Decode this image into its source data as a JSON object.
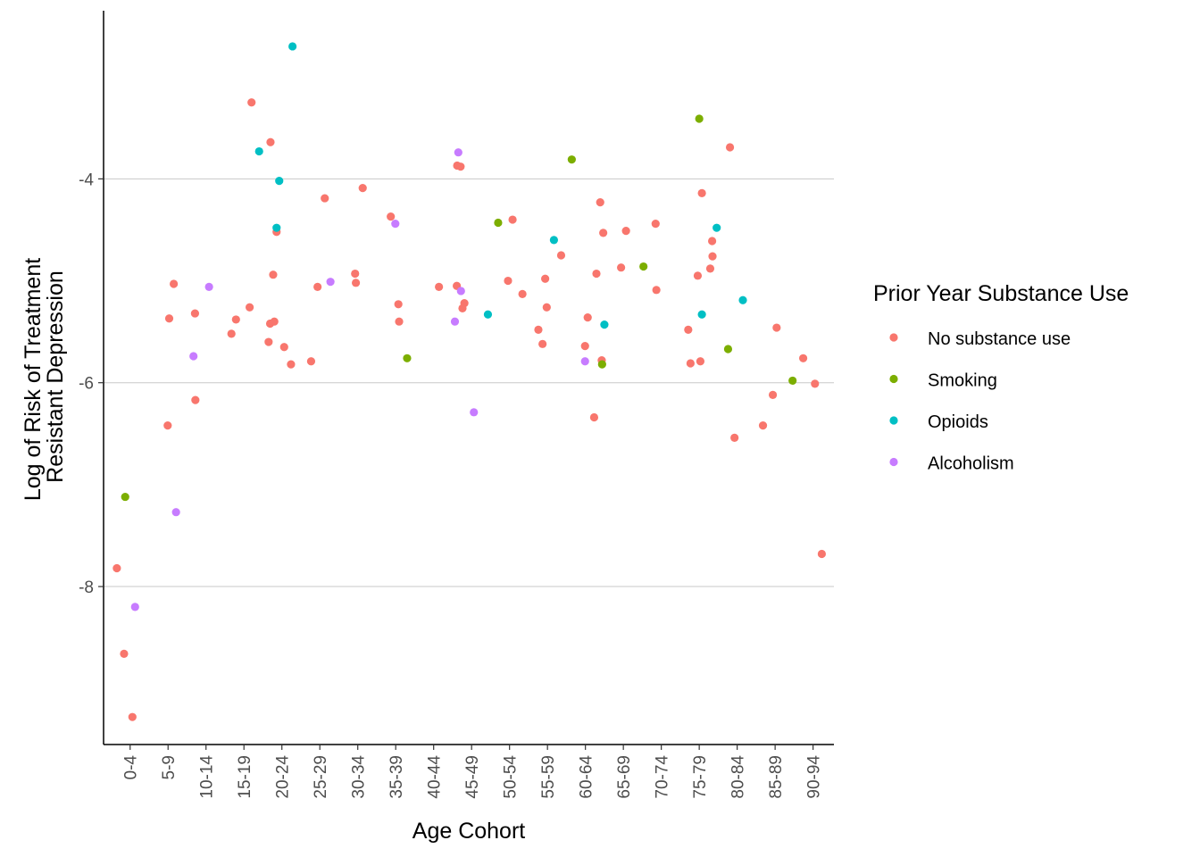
{
  "chart_data": {
    "type": "scatter",
    "title": "",
    "xlabel": "Age Cohort",
    "ylabel_lines": [
      "Log of Risk of Treatment",
      "Resistant Depression"
    ],
    "categories": [
      "0-4",
      "5-9",
      "10-14",
      "15-19",
      "20-24",
      "25-29",
      "30-34",
      "35-39",
      "40-44",
      "45-49",
      "50-54",
      "55-59",
      "60-64",
      "65-69",
      "70-74",
      "75-79",
      "80-84",
      "85-89",
      "90-94"
    ],
    "y_ticks": [
      -8,
      -6,
      -4
    ],
    "y_tick_labels": [
      "-8",
      "-6",
      "-4"
    ],
    "ylim": [
      -9.55,
      -2.35
    ],
    "xlim": [
      0.3,
      19.55
    ],
    "grid": "horizontal major lines",
    "legend": {
      "title": "Prior Year Substance Use",
      "position": "right",
      "entries": [
        "No substance use",
        "Smoking",
        "Opioids",
        "Alcoholism"
      ]
    },
    "colors": {
      "No substance use": "#F8766D",
      "Smoking": "#7CAE00",
      "Opioids": "#00BFC4",
      "Alcoholism": "#C77CFF"
    },
    "series": [
      {
        "name": "No substance use",
        "points": [
          [
            0.65,
            -7.82
          ],
          [
            0.84,
            -8.66
          ],
          [
            1.06,
            -9.28
          ],
          [
            1.99,
            -6.42
          ],
          [
            2.03,
            -5.37
          ],
          [
            2.15,
            -5.03
          ],
          [
            2.71,
            -5.32
          ],
          [
            2.72,
            -6.17
          ],
          [
            3.67,
            -5.52
          ],
          [
            3.79,
            -5.38
          ],
          [
            4.15,
            -5.26
          ],
          [
            4.2,
            -3.25
          ],
          [
            4.65,
            -5.6
          ],
          [
            4.69,
            -5.42
          ],
          [
            4.7,
            -3.64
          ],
          [
            4.77,
            -4.94
          ],
          [
            4.8,
            -5.4
          ],
          [
            4.86,
            -4.52
          ],
          [
            5.06,
            -5.65
          ],
          [
            5.24,
            -5.82
          ],
          [
            5.77,
            -5.79
          ],
          [
            5.94,
            -5.06
          ],
          [
            6.13,
            -4.19
          ],
          [
            6.93,
            -4.93
          ],
          [
            6.95,
            -5.02
          ],
          [
            7.13,
            -4.09
          ],
          [
            7.87,
            -4.37
          ],
          [
            8.07,
            -5.23
          ],
          [
            8.09,
            -5.4
          ],
          [
            9.14,
            -5.06
          ],
          [
            9.61,
            -5.05
          ],
          [
            9.62,
            -3.87
          ],
          [
            9.71,
            -3.88
          ],
          [
            9.76,
            -5.27
          ],
          [
            9.81,
            -5.22
          ],
          [
            10.96,
            -5.0
          ],
          [
            11.08,
            -4.4
          ],
          [
            11.34,
            -5.13
          ],
          [
            11.76,
            -5.48
          ],
          [
            11.87,
            -5.62
          ],
          [
            11.94,
            -4.98
          ],
          [
            11.98,
            -5.26
          ],
          [
            12.36,
            -4.75
          ],
          [
            12.99,
            -5.64
          ],
          [
            13.06,
            -5.36
          ],
          [
            13.23,
            -6.34
          ],
          [
            13.29,
            -4.93
          ],
          [
            13.39,
            -4.23
          ],
          [
            13.43,
            -5.78
          ],
          [
            13.47,
            -4.53
          ],
          [
            13.94,
            -4.87
          ],
          [
            14.07,
            -4.51
          ],
          [
            14.85,
            -4.44
          ],
          [
            14.87,
            -5.09
          ],
          [
            15.71,
            -5.48
          ],
          [
            15.77,
            -5.81
          ],
          [
            15.96,
            -4.95
          ],
          [
            16.03,
            -5.79
          ],
          [
            16.07,
            -4.14
          ],
          [
            16.29,
            -4.88
          ],
          [
            16.34,
            -4.61
          ],
          [
            16.35,
            -4.76
          ],
          [
            16.81,
            -3.69
          ],
          [
            16.93,
            -6.54
          ],
          [
            17.68,
            -6.42
          ],
          [
            17.94,
            -6.12
          ],
          [
            18.04,
            -5.46
          ],
          [
            18.74,
            -5.76
          ],
          [
            19.05,
            -6.01
          ],
          [
            19.23,
            -7.68
          ]
        ]
      },
      {
        "name": "Smoking",
        "points": [
          [
            0.87,
            -7.12
          ],
          [
            8.3,
            -5.76
          ],
          [
            10.7,
            -4.43
          ],
          [
            12.64,
            -3.81
          ],
          [
            13.44,
            -5.82
          ],
          [
            14.53,
            -4.86
          ],
          [
            16.0,
            -3.41
          ],
          [
            16.76,
            -5.67
          ],
          [
            18.46,
            -5.98
          ]
        ]
      },
      {
        "name": "Opioids",
        "points": [
          [
            4.4,
            -3.73
          ],
          [
            4.86,
            -4.48
          ],
          [
            4.93,
            -4.02
          ],
          [
            5.28,
            -2.7
          ],
          [
            10.43,
            -5.33
          ],
          [
            12.17,
            -4.6
          ],
          [
            13.5,
            -5.43
          ],
          [
            16.07,
            -5.33
          ],
          [
            16.46,
            -4.48
          ],
          [
            17.15,
            -5.19
          ]
        ]
      },
      {
        "name": "Alcoholism",
        "points": [
          [
            1.13,
            -8.2
          ],
          [
            2.21,
            -7.27
          ],
          [
            2.67,
            -5.74
          ],
          [
            3.08,
            -5.06
          ],
          [
            6.28,
            -5.01
          ],
          [
            7.99,
            -4.44
          ],
          [
            9.56,
            -5.4
          ],
          [
            9.65,
            -3.74
          ],
          [
            9.72,
            -5.1
          ],
          [
            10.06,
            -6.29
          ],
          [
            12.99,
            -5.79
          ]
        ]
      }
    ]
  }
}
